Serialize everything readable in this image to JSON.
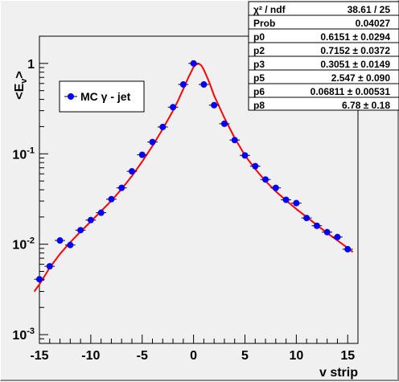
{
  "chart_data": {
    "type": "scatter",
    "title": "",
    "xlabel": "v strip",
    "ylabel_base": "<E",
    "ylabel_sub": "v",
    "ylabel_end": ">",
    "xlim": [
      -15,
      16
    ],
    "ylim": [
      0.0008,
      2
    ],
    "yscale": "log",
    "grid": false,
    "legend_position": "upper-left",
    "x_ticks": [
      {
        "value": -15,
        "label": "-15"
      },
      {
        "value": -10,
        "label": "-10"
      },
      {
        "value": -5,
        "label": "-5"
      },
      {
        "value": 0,
        "label": "0"
      },
      {
        "value": 5,
        "label": "5"
      },
      {
        "value": 10,
        "label": "10"
      },
      {
        "value": 15,
        "label": "15"
      }
    ],
    "y_ticks": [
      {
        "value": 0.001,
        "base": "10",
        "exp": "-3"
      },
      {
        "value": 0.01,
        "base": "10",
        "exp": "-2"
      },
      {
        "value": 0.1,
        "base": "10",
        "exp": "-1"
      },
      {
        "value": 1,
        "base": "1",
        "exp": ""
      }
    ],
    "series": [
      {
        "name": "MC γ - jet",
        "marker_color": "#0000ff",
        "x": [
          -15,
          -14,
          -13,
          -12,
          -11,
          -10,
          -9,
          -8,
          -7,
          -6,
          -5,
          -4,
          -3,
          -2,
          -1,
          0,
          1,
          2,
          3,
          4,
          5,
          6,
          7,
          8,
          9,
          10,
          11,
          12,
          13,
          14,
          15
        ],
        "y": [
          0.0041,
          0.0057,
          0.011,
          0.0098,
          0.0143,
          0.0185,
          0.0223,
          0.0315,
          0.042,
          0.064,
          0.0975,
          0.135,
          0.198,
          0.328,
          0.585,
          1.0,
          0.585,
          0.345,
          0.215,
          0.142,
          0.096,
          0.073,
          0.052,
          0.042,
          0.031,
          0.0285,
          0.0195,
          0.016,
          0.0136,
          0.012,
          0.0088
        ]
      },
      {
        "name": "fit",
        "line_color": "#ff0000",
        "x": [
          -15.5,
          -15,
          -14,
          -13,
          -12,
          -11,
          -10,
          -9,
          -8,
          -7,
          -6,
          -5,
          -4,
          -3,
          -2,
          -1.5,
          -1,
          -0.5,
          0,
          0.25,
          0.5,
          0.75,
          1,
          1.5,
          2,
          3,
          4,
          5,
          6,
          7,
          8,
          9,
          10,
          11,
          12,
          13,
          14,
          15,
          15.5
        ],
        "y": [
          0.003,
          0.0036,
          0.0055,
          0.0078,
          0.0105,
          0.0138,
          0.0178,
          0.0232,
          0.0302,
          0.0408,
          0.0568,
          0.082,
          0.122,
          0.188,
          0.3,
          0.39,
          0.52,
          0.7,
          0.91,
          0.97,
          0.995,
          0.95,
          0.85,
          0.63,
          0.44,
          0.25,
          0.15,
          0.096,
          0.068,
          0.05,
          0.0385,
          0.0305,
          0.0245,
          0.02,
          0.0163,
          0.0133,
          0.011,
          0.0091,
          0.0082
        ]
      }
    ],
    "stats": [
      {
        "label": "χ² / ndf",
        "value": "38.61 / 25"
      },
      {
        "label": "Prob",
        "value": "0.04027"
      },
      {
        "label": "p0",
        "value": "0.6151 ± 0.0294"
      },
      {
        "label": "p2",
        "value": "0.7152 ± 0.0372"
      },
      {
        "label": "p3",
        "value": "0.3051 ± 0.0149"
      },
      {
        "label": "p5",
        "value": "2.547 ± 0.090"
      },
      {
        "label": "p6",
        "value": "0.06811 ± 0.00531"
      },
      {
        "label": "p8",
        "value": "6.78 ± 0.18"
      }
    ]
  }
}
